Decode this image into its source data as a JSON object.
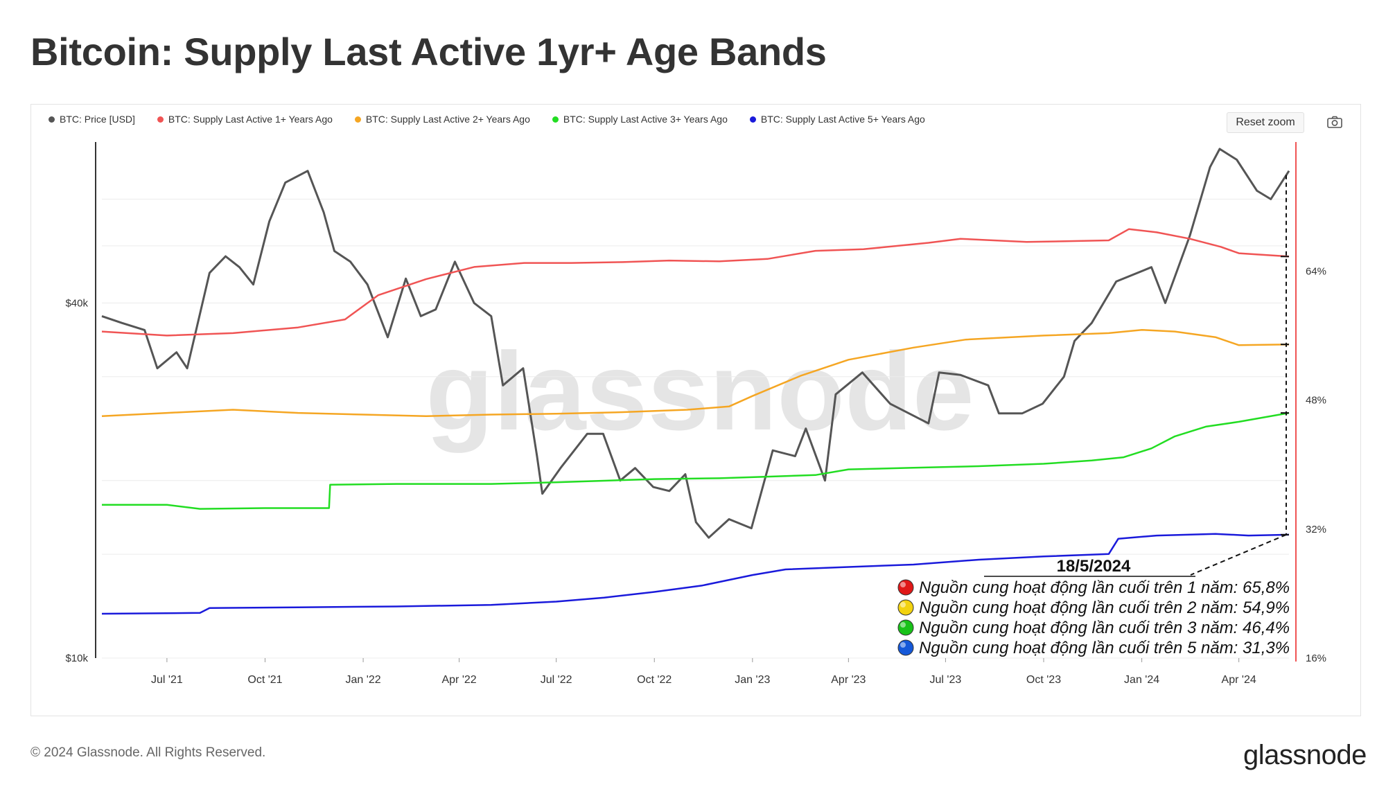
{
  "title": "Bitcoin: Supply Last Active 1yr+ Age Bands",
  "watermark": "glassnode",
  "reset_zoom": "Reset zoom",
  "footer": {
    "copyright": "© 2024 Glassnode. All Rights Reserved.",
    "logo": "glassnode"
  },
  "colors": {
    "price": "#555555",
    "s1": "#f05454",
    "s2": "#f5a623",
    "s3": "#22dd22",
    "s5": "#1a1adb",
    "axis_right": "#f05454"
  },
  "annotation": {
    "date": "18/5/2024",
    "lines": [
      "Nguồn cung hoạt động lần cuối trên 1 năm: 65,8%",
      "Nguồn cung hoạt động lần cuối trên 2 năm: 54,9%",
      "Nguồn cung hoạt động lần cuối trên 3 năm: 46,4%",
      "Nguồn cung hoạt động lần cuối trên 5 năm: 31,3%"
    ]
  },
  "chart_data": {
    "type": "line",
    "title": "Bitcoin: Supply Last Active 1yr+ Age Bands",
    "legend_position": "top-left",
    "grid": true,
    "x_tick_labels": [
      "Jul '21",
      "Oct '21",
      "Jan '22",
      "Apr '22",
      "Jul '22",
      "Oct '22",
      "Jan '23",
      "Apr '23",
      "Jul '23",
      "Oct '23",
      "Jan '24",
      "Apr '24"
    ],
    "y_left": {
      "scale": "log",
      "range": [
        10000,
        75000
      ],
      "tick_labels": [
        "$10k",
        "$40k"
      ]
    },
    "y_right": {
      "scale": "linear",
      "range": [
        16,
        80
      ],
      "tick_labels": [
        "16%",
        "32%",
        "48%",
        "64%"
      ]
    },
    "x_range": [
      "2021-05-01",
      "2024-05-18"
    ],
    "series": [
      {
        "name": "BTC: Price [USD]",
        "axis": "left",
        "color": "#555555",
        "x": [
          "2021-05-01",
          "2021-05-20",
          "2021-06-10",
          "2021-06-22",
          "2021-07-10",
          "2021-07-20",
          "2021-08-10",
          "2021-08-25",
          "2021-09-07",
          "2021-09-20",
          "2021-10-05",
          "2021-10-20",
          "2021-11-10",
          "2021-11-25",
          "2021-12-05",
          "2021-12-20",
          "2022-01-05",
          "2022-01-24",
          "2022-02-10",
          "2022-02-24",
          "2022-03-10",
          "2022-03-28",
          "2022-04-15",
          "2022-05-01",
          "2022-05-12",
          "2022-05-31",
          "2022-06-13",
          "2022-06-18",
          "2022-07-05",
          "2022-07-30",
          "2022-08-14",
          "2022-08-30",
          "2022-09-13",
          "2022-09-30",
          "2022-10-15",
          "2022-10-30",
          "2022-11-09",
          "2022-11-21",
          "2022-12-10",
          "2022-12-31",
          "2023-01-20",
          "2023-02-10",
          "2023-02-20",
          "2023-03-10",
          "2023-03-20",
          "2023-04-14",
          "2023-05-10",
          "2023-06-15",
          "2023-06-25",
          "2023-07-15",
          "2023-08-10",
          "2023-08-20",
          "2023-09-11",
          "2023-09-30",
          "2023-10-20",
          "2023-10-30",
          "2023-11-15",
          "2023-12-08",
          "2024-01-10",
          "2024-01-23",
          "2024-02-15",
          "2024-03-05",
          "2024-03-14",
          "2024-03-30",
          "2024-04-18",
          "2024-05-01",
          "2024-05-18"
        ],
        "y": [
          38000,
          37000,
          36000,
          31000,
          33000,
          31000,
          45000,
          48000,
          46000,
          43000,
          55000,
          64000,
          67000,
          57000,
          49000,
          47000,
          43000,
          35000,
          44000,
          38000,
          39000,
          47000,
          40000,
          38000,
          29000,
          31000,
          22000,
          19000,
          21000,
          24000,
          24000,
          20000,
          21000,
          19500,
          19200,
          20500,
          17000,
          16000,
          17200,
          16600,
          22500,
          22000,
          24500,
          20000,
          28000,
          30500,
          27000,
          25000,
          30500,
          30200,
          29000,
          26000,
          26000,
          27000,
          30000,
          34500,
          37000,
          43500,
          46000,
          40000,
          52000,
          68000,
          73000,
          70000,
          62000,
          60000,
          67000
        ]
      },
      {
        "name": "BTC: Supply Last Active 1+ Years Ago",
        "axis": "right",
        "color": "#f05454",
        "x": [
          "2021-05-01",
          "2021-07-01",
          "2021-09-01",
          "2021-11-01",
          "2021-12-15",
          "2022-01-15",
          "2022-03-01",
          "2022-04-15",
          "2022-06-01",
          "2022-07-15",
          "2022-09-01",
          "2022-10-15",
          "2022-12-01",
          "2023-01-15",
          "2023-03-01",
          "2023-04-15",
          "2023-06-15",
          "2023-07-15",
          "2023-09-15",
          "2023-12-01",
          "2023-12-20",
          "2024-01-15",
          "2024-02-15",
          "2024-03-15",
          "2024-04-01",
          "2024-05-18"
        ],
        "y": [
          56.5,
          56.0,
          56.3,
          57.0,
          58.0,
          61.0,
          63.0,
          64.5,
          65.0,
          65.0,
          65.1,
          65.3,
          65.2,
          65.5,
          66.5,
          66.7,
          67.5,
          68.0,
          67.6,
          67.8,
          69.2,
          68.8,
          68.0,
          67.0,
          66.2,
          65.8
        ]
      },
      {
        "name": "BTC: Supply Last Active 2+ Years Ago",
        "axis": "right",
        "color": "#f5a623",
        "x": [
          "2021-05-01",
          "2021-07-01",
          "2021-09-01",
          "2021-11-01",
          "2022-01-01",
          "2022-03-01",
          "2022-05-01",
          "2022-07-01",
          "2022-09-01",
          "2022-11-01",
          "2022-12-10",
          "2023-01-01",
          "2023-02-15",
          "2023-04-01",
          "2023-06-01",
          "2023-07-20",
          "2023-10-01",
          "2023-12-01",
          "2024-01-01",
          "2024-02-01",
          "2024-03-10",
          "2024-04-01",
          "2024-05-18"
        ],
        "y": [
          46.0,
          46.4,
          46.8,
          46.4,
          46.2,
          46.0,
          46.2,
          46.3,
          46.5,
          46.8,
          47.2,
          48.5,
          51.0,
          53.0,
          54.5,
          55.5,
          56.0,
          56.3,
          56.7,
          56.5,
          55.8,
          54.8,
          54.9
        ]
      },
      {
        "name": "BTC: Supply Last Active 3+ Years Ago",
        "axis": "right",
        "color": "#22dd22",
        "x": [
          "2021-05-01",
          "2021-07-01",
          "2021-08-01",
          "2021-10-01",
          "2021-11-30",
          "2021-12-01",
          "2022-02-01",
          "2022-05-01",
          "2022-07-01",
          "2022-10-01",
          "2022-12-01",
          "2023-01-15",
          "2023-03-01",
          "2023-04-01",
          "2023-06-01",
          "2023-08-01",
          "2023-10-01",
          "2023-11-15",
          "2023-12-15",
          "2024-01-10",
          "2024-02-01",
          "2024-03-01",
          "2024-04-01",
          "2024-05-18"
        ],
        "y": [
          35.0,
          35.0,
          34.5,
          34.6,
          34.6,
          37.5,
          37.6,
          37.6,
          37.8,
          38.2,
          38.3,
          38.5,
          38.7,
          39.4,
          39.6,
          39.8,
          40.1,
          40.5,
          40.9,
          42.0,
          43.5,
          44.7,
          45.3,
          46.4
        ]
      },
      {
        "name": "BTC: Supply Last Active 5+ Years Ago",
        "axis": "right",
        "color": "#1a1adb",
        "x": [
          "2021-05-01",
          "2021-08-01",
          "2021-08-10",
          "2021-11-01",
          "2022-02-01",
          "2022-05-01",
          "2022-07-01",
          "2022-08-15",
          "2022-10-01",
          "2022-11-15",
          "2023-01-01",
          "2023-02-01",
          "2023-04-01",
          "2023-06-01",
          "2023-08-01",
          "2023-10-01",
          "2023-12-01",
          "2023-12-10",
          "2024-01-15",
          "2024-03-10",
          "2024-04-10",
          "2024-05-18"
        ],
        "y": [
          21.5,
          21.6,
          22.2,
          22.3,
          22.4,
          22.6,
          23.0,
          23.5,
          24.2,
          25.0,
          26.3,
          27.0,
          27.3,
          27.6,
          28.2,
          28.6,
          28.9,
          30.8,
          31.2,
          31.4,
          31.2,
          31.3
        ]
      }
    ]
  }
}
